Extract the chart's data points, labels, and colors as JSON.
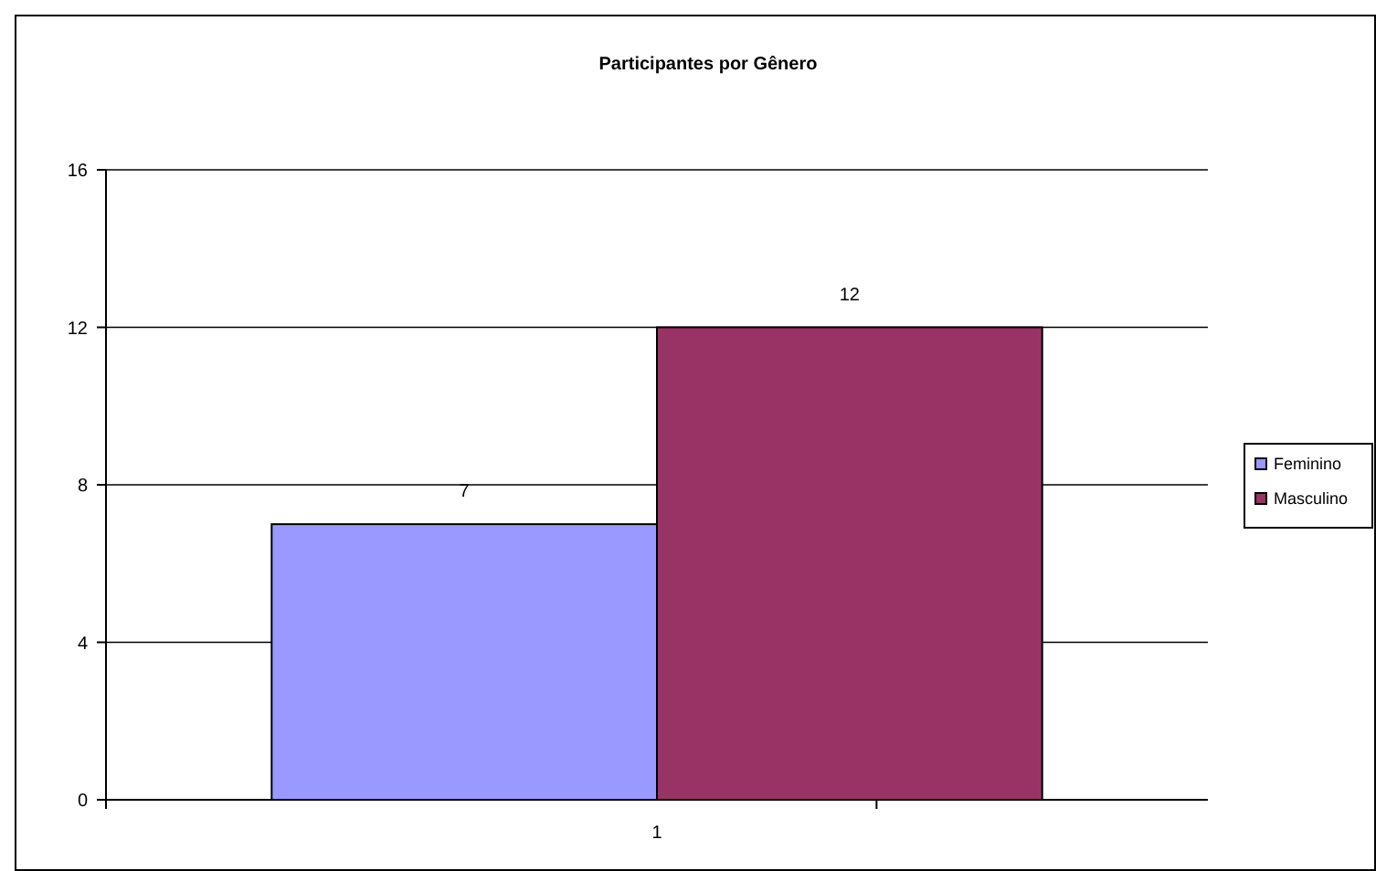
{
  "chart_data": {
    "type": "bar",
    "title": "Participantes por Gênero",
    "categories": [
      "1"
    ],
    "series": [
      {
        "name": "Feminino",
        "color": "#9999ff",
        "values": [
          7
        ]
      },
      {
        "name": "Masculino",
        "color": "#993366",
        "values": [
          12
        ]
      }
    ],
    "ylim": [
      0,
      16
    ],
    "yticks": [
      0,
      4,
      8,
      12,
      16
    ],
    "grid": "y",
    "legend": "right",
    "data_labels": true
  }
}
